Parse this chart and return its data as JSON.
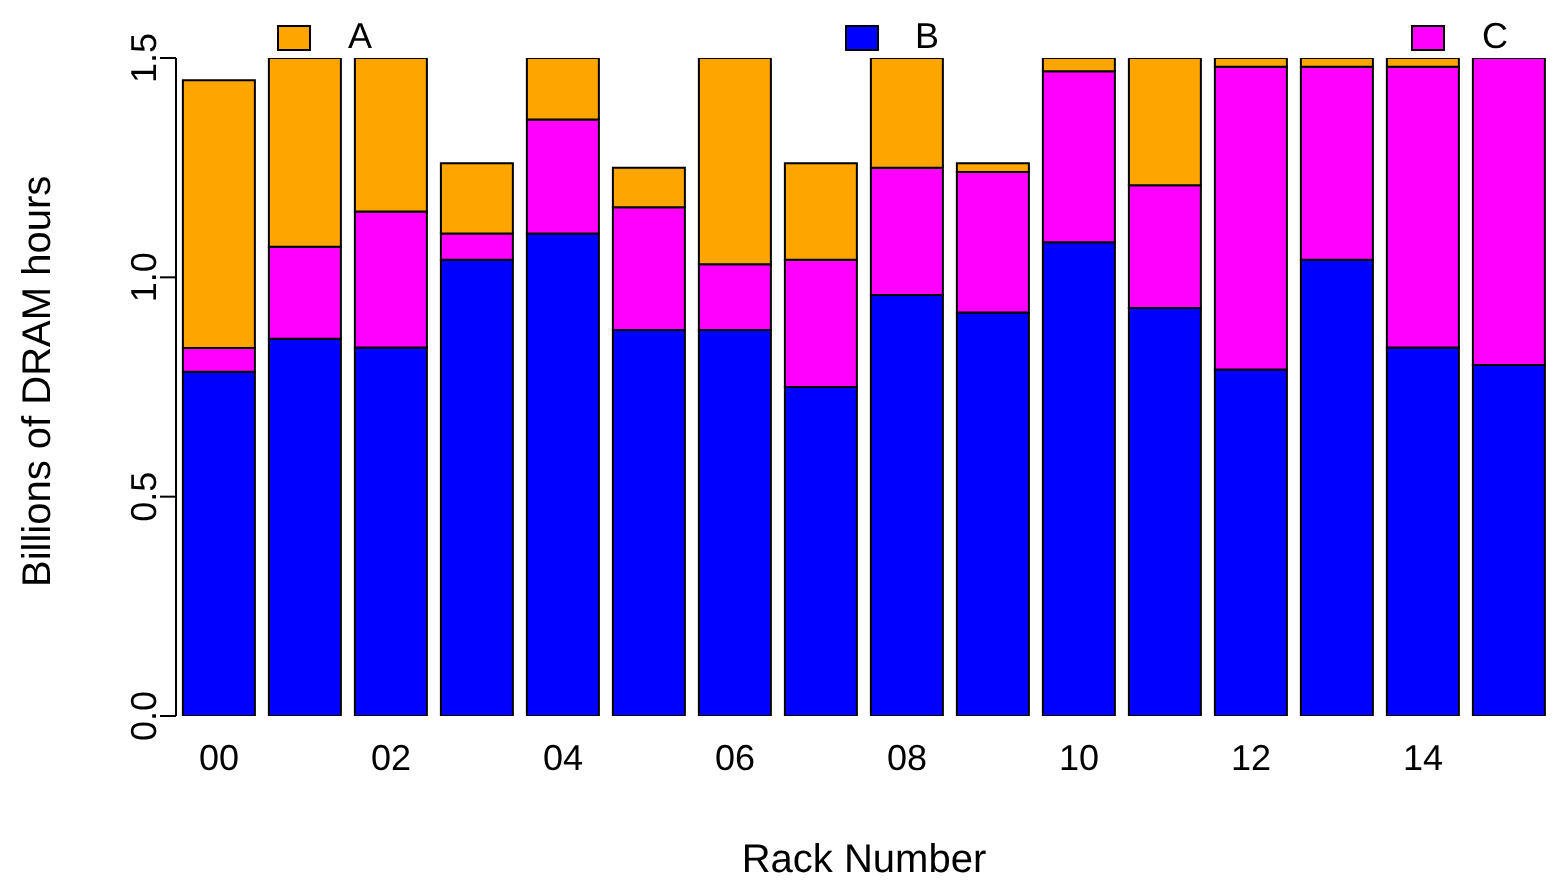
{
  "chart_data": {
    "type": "bar",
    "stacked": true,
    "xlabel": "Rack Number",
    "ylabel": "Billions of DRAM hours",
    "categories": [
      "00",
      null,
      "02",
      null,
      "04",
      null,
      "06",
      null,
      "08",
      null,
      "10",
      null,
      "12",
      null,
      "14",
      null
    ],
    "series": [
      {
        "name": "B",
        "color": "#0000ff",
        "values": [
          0.785,
          0.86,
          0.84,
          1.04,
          1.1,
          0.88,
          0.88,
          0.75,
          0.96,
          0.92,
          1.08,
          0.93,
          0.79,
          1.04,
          0.84,
          0.8
        ]
      },
      {
        "name": "C",
        "color": "#ff00ff",
        "values": [
          0.054,
          0.21,
          0.31,
          0.06,
          0.26,
          0.28,
          0.15,
          0.29,
          0.29,
          0.32,
          0.39,
          0.28,
          0.69,
          0.44,
          0.64,
          0.7
        ]
      },
      {
        "name": "A",
        "color": "#ffa500",
        "values": [
          0.61,
          0.43,
          0.35,
          0.16,
          0.14,
          0.09,
          0.47,
          0.22,
          0.25,
          0.02,
          0.03,
          0.29,
          0.02,
          0.02,
          0.02,
          0
        ]
      }
    ],
    "ylim": [
      0,
      1.5
    ],
    "yticks": [
      {
        "value": 0,
        "label": "0.0"
      },
      {
        "value": 0.5,
        "label": "0.5"
      },
      {
        "value": 1,
        "label": "1.0"
      },
      {
        "value": 1.5,
        "label": "1.5"
      }
    ],
    "grid": false,
    "legend": "top"
  }
}
